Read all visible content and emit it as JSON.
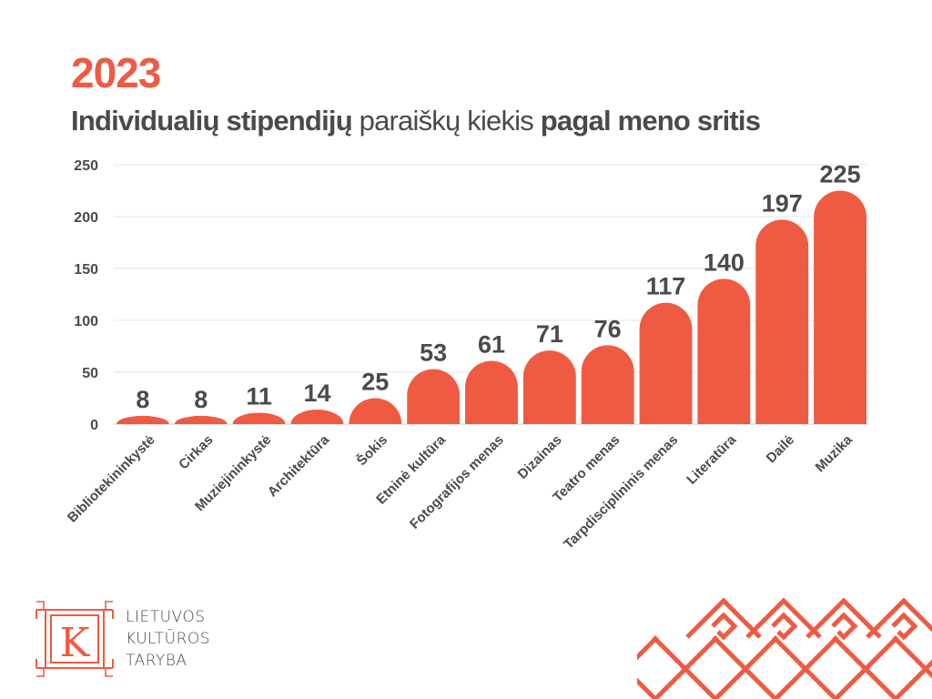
{
  "header": {
    "year": "2023",
    "title_bold_1": "Individualių stipendijų",
    "title_light": "paraiškų kiekis",
    "title_bold_2": "pagal meno sritis"
  },
  "colors": {
    "accent": "#ee5b42",
    "text": "#4a4a4a",
    "grid": "#e6e6e6"
  },
  "chart_data": {
    "type": "bar",
    "categories": [
      "Bibliotekininkystė",
      "Cirkas",
      "Muziejininkystė",
      "Architektūra",
      "Šokis",
      "Etninė kultūra",
      "Fotografijos menas",
      "Dizainas",
      "Teatro menas",
      "Tarpdisciplininis menas",
      "Literatūra",
      "Dailė",
      "Muzika"
    ],
    "values": [
      8,
      8,
      11,
      14,
      25,
      53,
      61,
      71,
      76,
      117,
      140,
      197,
      225
    ],
    "y_ticks": [
      0,
      50,
      100,
      150,
      200,
      250
    ],
    "ylim": [
      0,
      250
    ],
    "grid": true,
    "data_labels": true
  },
  "logo": {
    "letter": "K",
    "line1": "LIETUVOS",
    "line2": "KULTŪROS",
    "line3": "TARYBA"
  }
}
